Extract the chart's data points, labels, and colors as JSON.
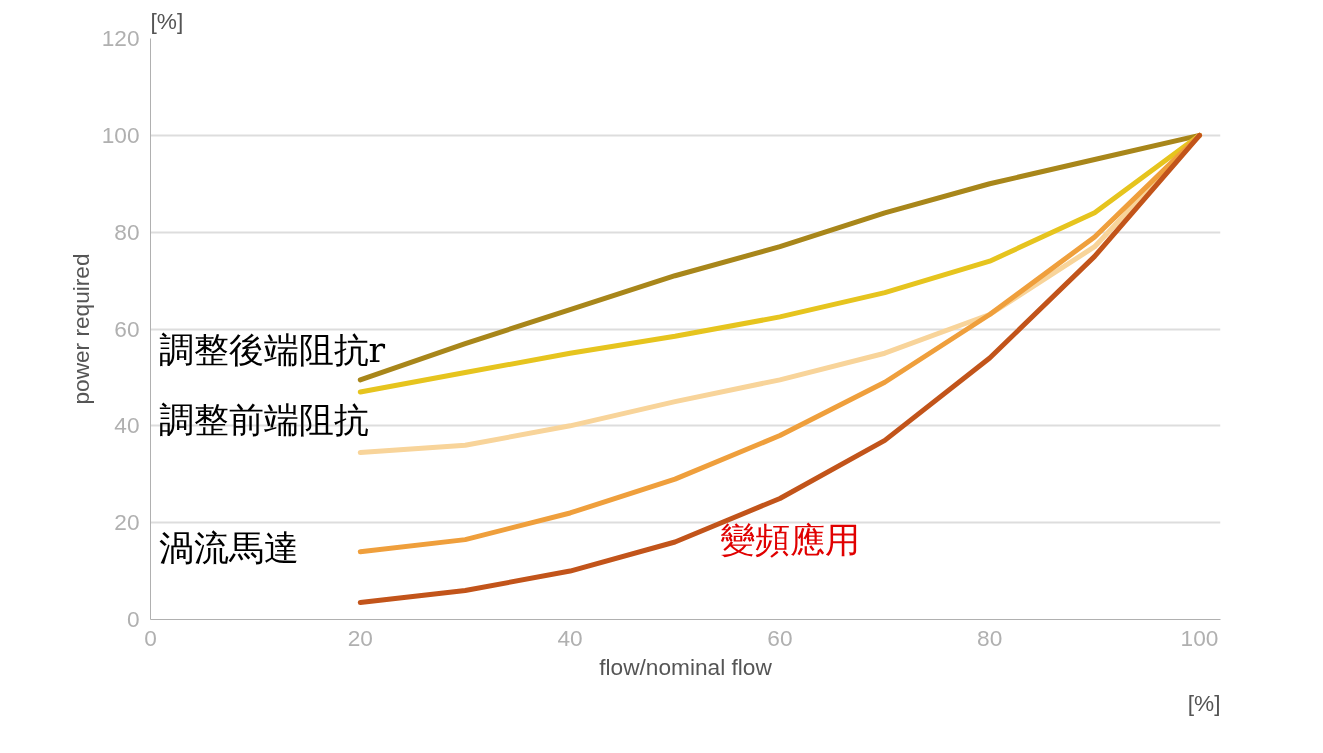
{
  "chart_data": {
    "type": "line",
    "xlabel": "flow/nominal flow",
    "ylabel": "power required",
    "x": [
      20,
      30,
      40,
      50,
      60,
      70,
      80,
      90,
      100
    ],
    "xlim": [
      0,
      102
    ],
    "ylim": [
      0,
      120
    ],
    "xticks": [
      0,
      20,
      40,
      60,
      80,
      100
    ],
    "yticks": [
      0,
      20,
      40,
      60,
      80,
      100,
      120
    ],
    "grid": "y",
    "line_style": "solid",
    "marker": "none",
    "series": [
      {
        "name": "調整後端阻抗r",
        "color": "#a8861a",
        "values": [
          49.5,
          57,
          64,
          71,
          77,
          84,
          90,
          95,
          100
        ]
      },
      {
        "name": "調整前端阻抗",
        "color": "#e6c41e",
        "values": [
          47,
          51,
          55,
          58.5,
          62.5,
          67.5,
          74,
          84,
          100
        ]
      },
      {
        "color": "#f8d49a",
        "values": [
          34.5,
          36,
          40,
          45,
          49.5,
          55,
          63,
          77,
          100
        ]
      },
      {
        "name": "渦流馬達",
        "color": "#ef9f3c",
        "values": [
          14,
          16.5,
          22,
          29,
          38,
          49,
          63,
          79,
          100
        ]
      },
      {
        "name": "變頻應用",
        "color": "#c2541a",
        "values": [
          3.5,
          6,
          10,
          16,
          25,
          37,
          54,
          75,
          100
        ]
      }
    ],
    "annotations": [
      "[%]",
      "[%]"
    ]
  }
}
